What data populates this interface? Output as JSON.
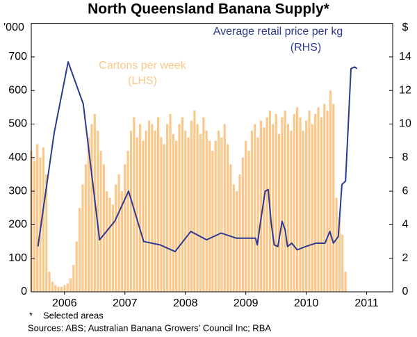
{
  "chart_data": {
    "type": "combo",
    "title": "North Queensland Banana Supply*",
    "y_unit": "'000",
    "y2_unit": "$",
    "xlim": [
      2005.95,
      2011.93
    ],
    "xticks": [
      {
        "value": 2006.5,
        "label": "2006"
      },
      {
        "value": 2007.5,
        "label": "2007"
      },
      {
        "value": 2008.5,
        "label": "2008"
      },
      {
        "value": 2009.5,
        "label": "2009"
      },
      {
        "value": 2010.5,
        "label": "2010"
      },
      {
        "value": 2011.5,
        "label": "2011"
      }
    ],
    "ylim": [
      0,
      800
    ],
    "yticks": [
      0,
      100,
      200,
      300,
      400,
      500,
      600,
      700
    ],
    "y2lim": [
      0,
      16
    ],
    "y2ticks": [
      0,
      2,
      4,
      6,
      8,
      10,
      12,
      14
    ],
    "grid": false,
    "series": [
      {
        "name": "Cartons per week",
        "note": "(LHS)",
        "type": "bar",
        "axis": "y",
        "color": "#fbc88a",
        "x": [
          2005.95,
          2006.0,
          2006.05,
          2006.1,
          2006.15,
          2006.2,
          2006.25,
          2006.3,
          2006.35,
          2006.4,
          2006.45,
          2006.5,
          2006.55,
          2006.6,
          2006.65,
          2006.7,
          2006.75,
          2006.8,
          2006.85,
          2006.9,
          2006.95,
          2007.0,
          2007.05,
          2007.1,
          2007.15,
          2007.2,
          2007.25,
          2007.3,
          2007.35,
          2007.4,
          2007.45,
          2007.5,
          2007.55,
          2007.6,
          2007.65,
          2007.7,
          2007.75,
          2007.8,
          2007.85,
          2007.9,
          2007.95,
          2008.0,
          2008.05,
          2008.1,
          2008.15,
          2008.2,
          2008.25,
          2008.3,
          2008.35,
          2008.4,
          2008.45,
          2008.5,
          2008.55,
          2008.6,
          2008.65,
          2008.7,
          2008.75,
          2008.8,
          2008.85,
          2008.9,
          2008.95,
          2009.0,
          2009.05,
          2009.1,
          2009.15,
          2009.2,
          2009.25,
          2009.3,
          2009.35,
          2009.4,
          2009.45,
          2009.5,
          2009.55,
          2009.6,
          2009.65,
          2009.7,
          2009.75,
          2009.8,
          2009.85,
          2009.9,
          2009.95,
          2010.0,
          2010.05,
          2010.1,
          2010.15,
          2010.2,
          2010.25,
          2010.3,
          2010.35,
          2010.4,
          2010.45,
          2010.5,
          2010.55,
          2010.6,
          2010.65,
          2010.7,
          2010.75,
          2010.8,
          2010.85,
          2010.9,
          2010.95,
          2011.0,
          2011.05,
          2011.1,
          2011.15
        ],
        "values": [
          420,
          390,
          440,
          400,
          430,
          350,
          60,
          30,
          20,
          15,
          15,
          20,
          25,
          40,
          80,
          150,
          250,
          320,
          380,
          460,
          500,
          530,
          480,
          420,
          380,
          300,
          280,
          260,
          320,
          350,
          300,
          380,
          420,
          480,
          520,
          460,
          500,
          450,
          480,
          510,
          500,
          480,
          520,
          460,
          440,
          500,
          530,
          470,
          450,
          500,
          520,
          480,
          460,
          510,
          540,
          500,
          470,
          520,
          480,
          450,
          420,
          450,
          480,
          460,
          500,
          440,
          380,
          320,
          300,
          350,
          400,
          450,
          420,
          480,
          500,
          460,
          510,
          490,
          520,
          540,
          500,
          530,
          470,
          520,
          540,
          500,
          480,
          530,
          550,
          520,
          480,
          510,
          540,
          500,
          530,
          550,
          520,
          560,
          540,
          600,
          560,
          280,
          220,
          170,
          60
        ]
      },
      {
        "name": "Average retail price per kg",
        "note": "(RHS)",
        "type": "line",
        "axis": "y2",
        "color": "#2b3990",
        "x": [
          2006.06,
          2006.33,
          2006.56,
          2006.81,
          2007.08,
          2007.33,
          2007.56,
          2007.81,
          2008.08,
          2008.33,
          2008.59,
          2008.85,
          2009.09,
          2009.34,
          2009.66,
          2009.69,
          2009.74,
          2009.82,
          2009.87,
          2009.92,
          2009.97,
          2010.03,
          2010.1,
          2010.15,
          2010.19,
          2010.26,
          2010.35,
          2010.49,
          2010.66,
          2010.81,
          2010.89,
          2010.95,
          2011.03,
          2011.09,
          2011.15,
          2011.24,
          2011.3,
          2011.34
        ],
        "values": [
          2.7,
          9.5,
          13.7,
          11.2,
          3.1,
          4.2,
          6.0,
          3.0,
          2.8,
          2.4,
          3.6,
          3.1,
          3.5,
          3.2,
          3.2,
          2.8,
          4.1,
          6.0,
          6.1,
          4.1,
          2.8,
          2.7,
          4.2,
          3.7,
          2.7,
          2.9,
          2.5,
          2.7,
          2.9,
          2.9,
          3.6,
          2.9,
          3.3,
          6.4,
          6.6,
          13.3,
          13.4,
          13.3
        ]
      }
    ],
    "footnote": {
      "marker": "*",
      "text": "Selected areas"
    },
    "sources": "Sources: ABS; Australian Banana Growers' Council Inc; RBA"
  }
}
